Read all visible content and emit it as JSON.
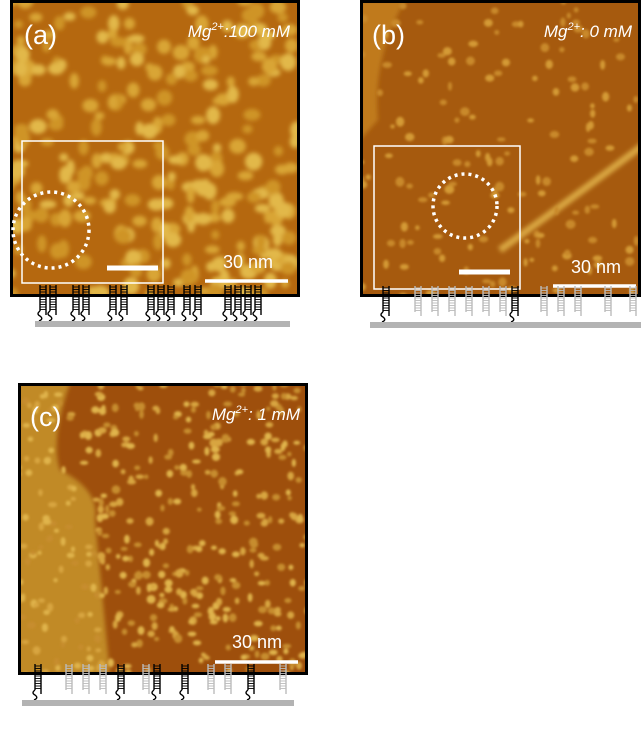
{
  "panels": [
    {
      "tag": "(a)",
      "condition": {
        "base": "Mg",
        "sup": "2+",
        "rest": ":100 mM"
      },
      "scale": "30 nm"
    },
    {
      "tag": "(b)",
      "condition": {
        "base": "Mg",
        "sup": "2+",
        "rest": ": 0 mM"
      },
      "scale": "30 nm"
    },
    {
      "tag": "(c)",
      "condition": {
        "base": "Mg",
        "sup": "2+",
        "rest": ": 1 mM"
      },
      "scale": "30 nm"
    }
  ]
}
